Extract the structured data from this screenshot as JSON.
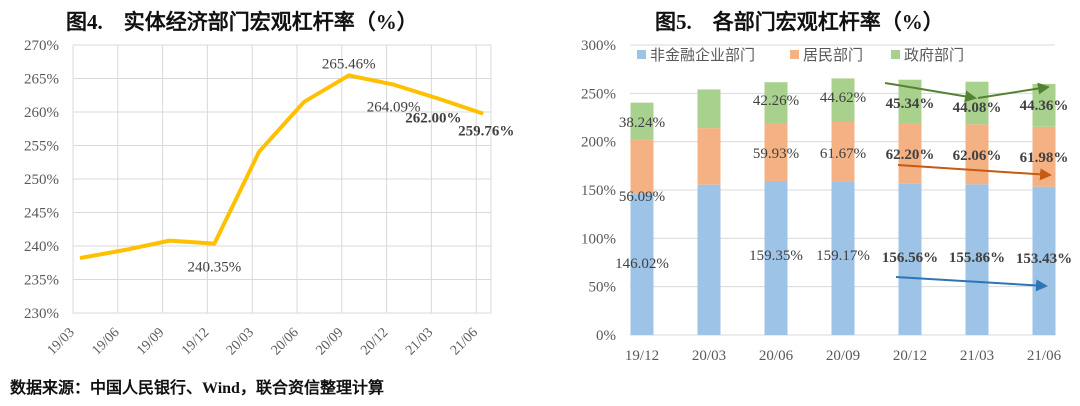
{
  "chart_data": [
    {
      "type": "line",
      "title": "图4.　实体经济部门宏观杠杆率（%）",
      "categories": [
        "19/03",
        "19/06",
        "19/09",
        "19/12",
        "20/03",
        "20/06",
        "20/09",
        "20/12",
        "21/03",
        "21/06"
      ],
      "values": [
        238.2,
        239.4,
        240.8,
        240.35,
        254.1,
        261.5,
        265.46,
        264.09,
        262.0,
        259.76
      ],
      "data_labels": [
        {
          "category": "19/12",
          "text": "240.35%",
          "bold": false
        },
        {
          "category": "20/09",
          "text": "265.46%",
          "bold": false
        },
        {
          "category": "20/12",
          "text": "264.09%",
          "bold": false
        },
        {
          "category": "21/03",
          "text": "262.00%",
          "bold": true
        },
        {
          "category": "21/06",
          "text": "259.76%",
          "bold": true
        }
      ],
      "ylim": [
        230,
        270
      ],
      "yticks": [
        "230%",
        "235%",
        "240%",
        "245%",
        "250%",
        "255%",
        "260%",
        "265%",
        "270%"
      ],
      "grid": true,
      "color": "#FFC000"
    },
    {
      "type": "bar",
      "stacked": true,
      "title": "图5.　各部门宏观杠杆率（%）",
      "categories": [
        "19/12",
        "20/03",
        "20/06",
        "20/09",
        "20/12",
        "21/03",
        "21/06"
      ],
      "series": [
        {
          "name": "非金融企业部门",
          "color": "#9DC3E6",
          "values": [
            146.02,
            155.5,
            159.35,
            159.17,
            156.56,
            155.86,
            153.43
          ],
          "labels": [
            "146.02%",
            "",
            "159.35%",
            "159.17%",
            "156.56%",
            "155.86%",
            "153.43%"
          ]
        },
        {
          "name": "居民部门",
          "color": "#F4B183",
          "values": [
            56.09,
            58.5,
            59.93,
            61.67,
            62.2,
            62.06,
            61.98
          ],
          "labels": [
            "56.09%",
            "",
            "59.93%",
            "61.67%",
            "62.20%",
            "62.06%",
            "61.98%"
          ]
        },
        {
          "name": "政府部门",
          "color": "#A9D18E",
          "values": [
            38.24,
            40.0,
            42.26,
            44.62,
            45.34,
            44.08,
            44.36
          ],
          "labels": [
            "38.24%",
            "",
            "42.26%",
            "44.62%",
            "45.34%",
            "44.08%",
            "44.36%"
          ]
        }
      ],
      "bold_from_category": "20/12",
      "ylim": [
        0,
        300
      ],
      "yticks": [
        "0%",
        "50%",
        "100%",
        "150%",
        "200%",
        "250%",
        "300%"
      ],
      "grid": true,
      "legend": "top",
      "arrow_colors": {
        "government": "#548235",
        "household": "#C55A11",
        "corporate": "#2E75B6"
      }
    }
  ],
  "source": "数据来源：中国人民银行、Wind，联合资信整理计算"
}
